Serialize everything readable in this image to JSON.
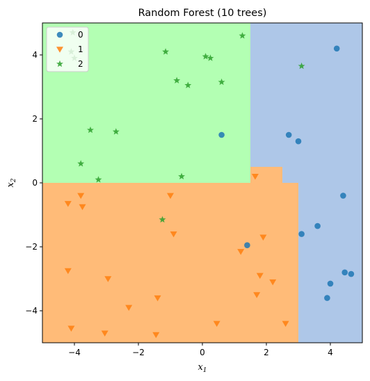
{
  "chart_data": {
    "type": "scatter",
    "title": "Random Forest (10 trees)",
    "xlabel": "x1",
    "ylabel": "x2",
    "xlim": [
      -5,
      5
    ],
    "ylim": [
      -5,
      5
    ],
    "xticks": [
      -4,
      -2,
      0,
      2,
      4
    ],
    "yticks": [
      -4,
      -2,
      0,
      2,
      4
    ],
    "xtick_labels": [
      "−4",
      "−2",
      "0",
      "2",
      "4"
    ],
    "ytick_labels": [
      "−4",
      "−2",
      "0",
      "2",
      "4"
    ],
    "legend_position": "upper-left",
    "decision_regions": [
      {
        "class": "2",
        "color": "#b3ffb3",
        "rects": [
          [
            -5,
            0,
            1.5,
            5
          ]
        ]
      },
      {
        "class": "0",
        "color": "#aec7e8",
        "rects": [
          [
            1.5,
            0.5,
            5,
            5
          ],
          [
            2.5,
            0,
            5,
            0.5
          ],
          [
            3,
            -5,
            5,
            0
          ]
        ]
      },
      {
        "class": "1",
        "color": "#ffbb78",
        "rects": [
          [
            -5,
            -5,
            3,
            0
          ],
          [
            1.5,
            0,
            2.5,
            0.5
          ]
        ]
      }
    ],
    "series": [
      {
        "name": "0",
        "marker": "circle",
        "color": "#1f77b4",
        "points": [
          [
            4.2,
            4.2
          ],
          [
            0.6,
            1.5
          ],
          [
            2.7,
            1.5
          ],
          [
            3.0,
            1.3
          ],
          [
            4.4,
            -0.4
          ],
          [
            3.1,
            -1.6
          ],
          [
            3.6,
            -1.35
          ],
          [
            1.4,
            -1.95
          ],
          [
            4.45,
            -2.8
          ],
          [
            4.65,
            -2.85
          ],
          [
            4.0,
            -3.15
          ],
          [
            3.9,
            -3.6
          ]
        ]
      },
      {
        "name": "1",
        "marker": "triangle-down",
        "color": "#ff7f0e",
        "points": [
          [
            1.65,
            0.2
          ],
          [
            -4.2,
            -0.65
          ],
          [
            -3.8,
            -0.4
          ],
          [
            -3.75,
            -0.75
          ],
          [
            -1.0,
            -0.4
          ],
          [
            -0.9,
            -1.6
          ],
          [
            1.9,
            -1.7
          ],
          [
            1.2,
            -2.15
          ],
          [
            -4.2,
            -2.75
          ],
          [
            -2.95,
            -3.0
          ],
          [
            1.8,
            -2.9
          ],
          [
            2.2,
            -3.1
          ],
          [
            -1.4,
            -3.6
          ],
          [
            1.7,
            -3.5
          ],
          [
            -2.3,
            -3.9
          ],
          [
            -4.1,
            -4.55
          ],
          [
            -3.05,
            -4.7
          ],
          [
            -1.45,
            -4.75
          ],
          [
            0.45,
            -4.4
          ],
          [
            2.6,
            -4.4
          ]
        ]
      },
      {
        "name": "2",
        "marker": "star",
        "color": "#2ca02c",
        "points": [
          [
            -4.05,
            4.7
          ],
          [
            -4.1,
            4.1
          ],
          [
            -4.0,
            3.9
          ],
          [
            -1.15,
            4.1
          ],
          [
            0.1,
            3.95
          ],
          [
            0.25,
            3.9
          ],
          [
            1.25,
            4.6
          ],
          [
            -0.8,
            3.2
          ],
          [
            -0.45,
            3.05
          ],
          [
            0.6,
            3.15
          ],
          [
            3.1,
            3.65
          ],
          [
            -3.5,
            1.65
          ],
          [
            -2.7,
            1.6
          ],
          [
            -3.8,
            0.6
          ],
          [
            -3.25,
            0.1
          ],
          [
            -0.65,
            0.2
          ],
          [
            -1.25,
            -1.15
          ]
        ]
      }
    ]
  }
}
